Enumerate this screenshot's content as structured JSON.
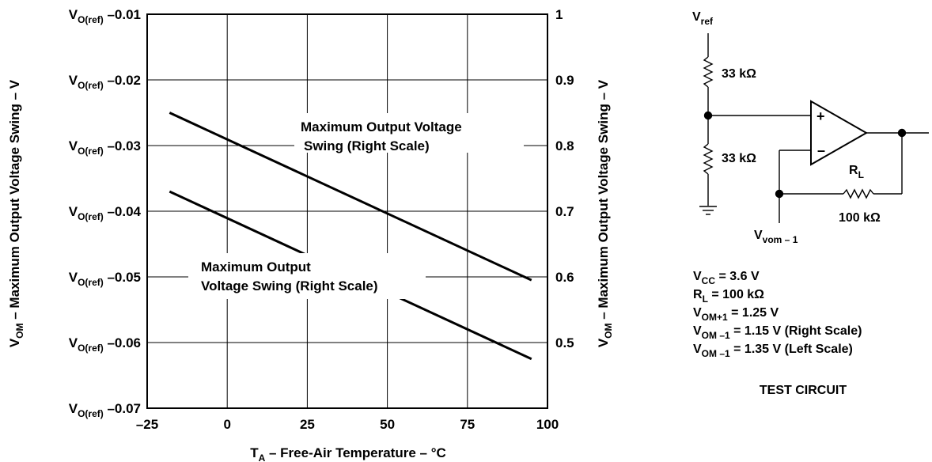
{
  "chart_data": {
    "type": "line",
    "title": "",
    "xlabel": {
      "prefix": "T",
      "sub": "A",
      "rest": " – Free-Air Temperature – °C"
    },
    "ylabel_left": {
      "prefix": "V",
      "sub": "OM",
      "rest": " – Maximum Output Voltage Swing – V"
    },
    "ylabel_right": {
      "prefix": "V",
      "sub": "OM",
      "rest": " – Maximum Output Voltage Swing – V"
    },
    "xlim": [
      -25,
      100
    ],
    "ylim_right": [
      0.4,
      1.0
    ],
    "x_ticks": [
      "–25",
      "0",
      "25",
      "50",
      "75",
      "100"
    ],
    "x_tick_values": [
      -25,
      0,
      25,
      50,
      75,
      100
    ],
    "right_ticks": [
      "1",
      "0.9",
      "0.8",
      "0.7",
      "0.6",
      "0.5"
    ],
    "right_tick_values": [
      1.0,
      0.9,
      0.8,
      0.7,
      0.6,
      0.5
    ],
    "left_ticks": [
      {
        "v": "V",
        "sub": "O(ref)",
        "rest": " –0.01"
      },
      {
        "v": "V",
        "sub": "O(ref)",
        "rest": " –0.02"
      },
      {
        "v": "V",
        "sub": "O(ref)",
        "rest": " –0.03"
      },
      {
        "v": "V",
        "sub": "O(ref)",
        "rest": " –0.04"
      },
      {
        "v": "V",
        "sub": "O(ref)",
        "rest": " –0.05"
      },
      {
        "v": "V",
        "sub": "O(ref)",
        "rest": " –0.06"
      },
      {
        "v": "V",
        "sub": "O(ref)",
        "rest": " –0.07"
      }
    ],
    "grid": true,
    "series": [
      {
        "x": [
          -18,
          95
        ],
        "y": [
          0.85,
          0.595
        ]
      },
      {
        "x": [
          -18,
          95
        ],
        "y": [
          0.73,
          0.475
        ]
      }
    ],
    "annotations": [
      {
        "lines": [
          "Maximum Output Voltage",
          "Swing (Right Scale)"
        ]
      },
      {
        "lines": [
          "Maximum Output",
          "Voltage Swing (Right Scale)"
        ]
      }
    ]
  },
  "circuit": {
    "vref": {
      "v": "V",
      "sub": "ref"
    },
    "r_top": "33 kΩ",
    "r_bottom": "33 kΩ",
    "rl_label": {
      "v": "R",
      "sub": "L"
    },
    "rl_value": "100 kΩ",
    "plus": "+",
    "minus": "–",
    "vom_node": {
      "v": "V",
      "sub": "vom – 1"
    },
    "conditions": [
      {
        "v": "V",
        "sub": "CC",
        "rest": " = 3.6 V"
      },
      {
        "v": "R",
        "sub": "L",
        "rest": " = 100 kΩ"
      },
      {
        "v": "V",
        "sub": "OM+1",
        "rest": " = 1.25 V"
      },
      {
        "v": "V",
        "sub": "OM –1",
        "rest": " = 1.15 V (Right Scale)"
      },
      {
        "v": "V",
        "sub": "OM –1",
        "rest": " = 1.35 V (Left Scale)"
      }
    ],
    "caption": "TEST CIRCUIT"
  }
}
